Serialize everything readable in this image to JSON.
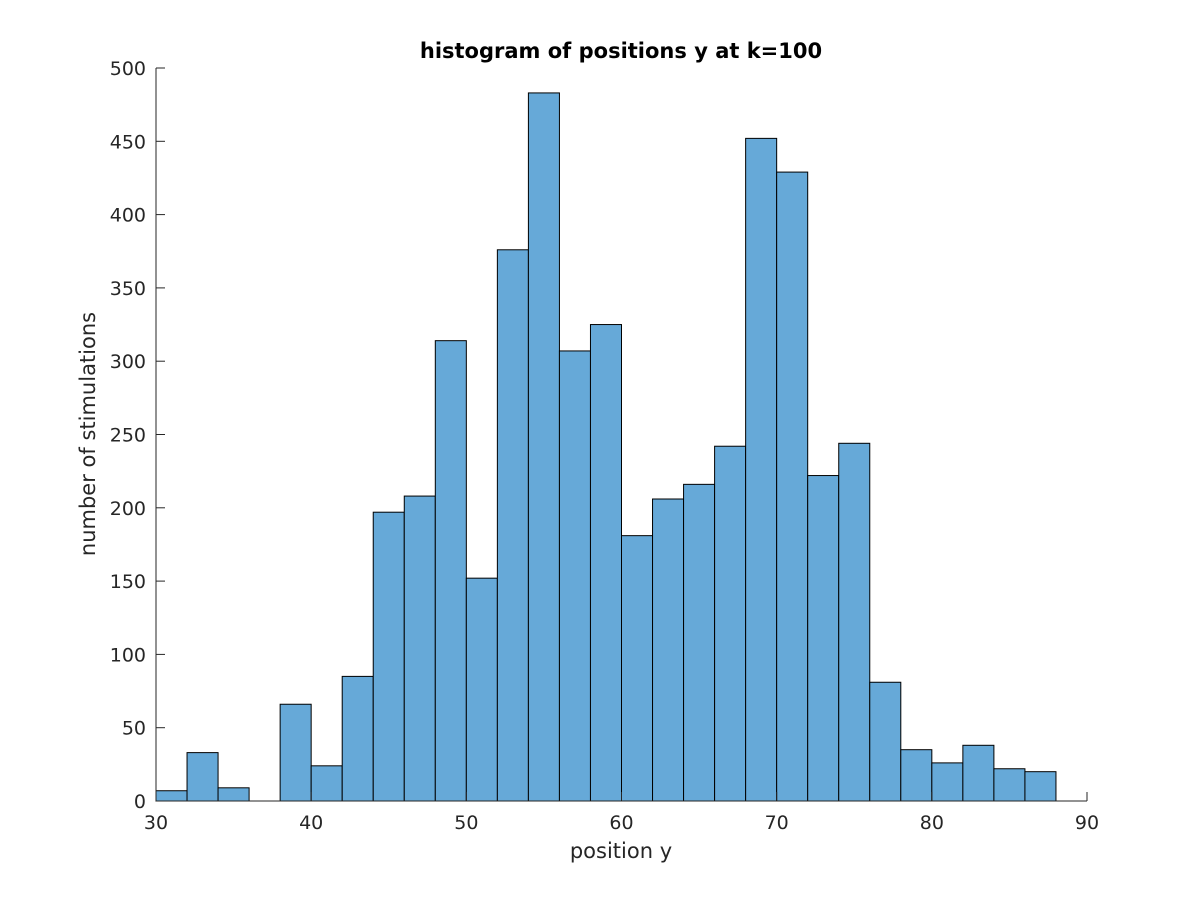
{
  "chart_data": {
    "type": "bar",
    "title": "histogram of positions y at k=100",
    "xlabel": "position y",
    "ylabel": "number of stimulations",
    "bin_edges": [
      30,
      32,
      34,
      36,
      38,
      40,
      42,
      44,
      46,
      48,
      50,
      52,
      54,
      56,
      58,
      60,
      62,
      64,
      66,
      68,
      70,
      72,
      74,
      76,
      78,
      80,
      82,
      84,
      86,
      88
    ],
    "values": [
      7,
      33,
      9,
      0,
      66,
      24,
      85,
      197,
      208,
      314,
      152,
      376,
      483,
      307,
      325,
      181,
      206,
      216,
      242,
      452,
      429,
      222,
      244,
      81,
      35,
      26,
      38,
      22,
      20
    ],
    "xlim": [
      30,
      90
    ],
    "ylim": [
      0,
      500
    ],
    "xticks": [
      "30",
      "40",
      "50",
      "60",
      "70",
      "80",
      "90"
    ],
    "yticks": [
      "0",
      "50",
      "100",
      "150",
      "200",
      "250",
      "300",
      "350",
      "400",
      "450",
      "500"
    ],
    "bar_color": "#66a9d8",
    "grid": false,
    "legend": "none"
  }
}
